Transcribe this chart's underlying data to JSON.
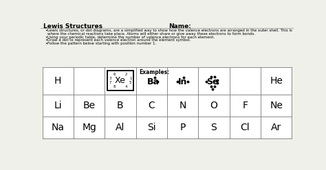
{
  "title": "Lewis Structures",
  "name_label": "Name:",
  "bullet1_line1": "Lewis structures, or dot diagrams, are a simplified way to show how the valence electrons are arranged in the outer shell. This is",
  "bullet1_line2": "where the chemical reactions take place. Atoms will either share or give away these electrons to form bonds.",
  "bullet2": "Using your periodic table, determine the number of valence electrons for each element.",
  "bullet3": "Draw a dot to represent each valence electron around the element symbol.",
  "bullet4": "Follow the pattern below starting with position number 1.",
  "examples_label": "Examples:",
  "bg_color": "#f0f0eb",
  "table_bg": "#ffffff",
  "border_color": "#777777",
  "row1_left": "H",
  "row1_right": "He",
  "row2": [
    "Li",
    "Be",
    "B",
    "C",
    "N",
    "O",
    "F",
    "Ne"
  ],
  "row3": [
    "Na",
    "Mg",
    "Al",
    "Si",
    "P",
    "S",
    "Cl",
    "Ar"
  ],
  "xe_tl": "6",
  "xe_tr": "2",
  "xe_lt": "3",
  "xe_lb": "7",
  "xe_rt": "1",
  "xe_rb": "5",
  "xe_bl": "8",
  "xe_br": "4"
}
